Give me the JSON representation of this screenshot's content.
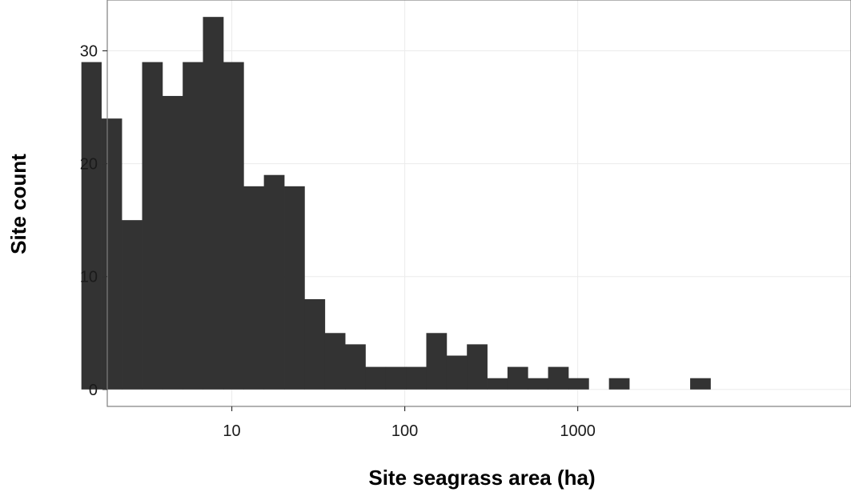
{
  "chart_data": {
    "type": "bar",
    "subtype": "histogram",
    "xlabel": "Site seagrass area (ha)",
    "ylabel": "Site count",
    "x_scale": "log10",
    "x_ticks": [
      10,
      100,
      1000
    ],
    "x_tick_labels": [
      "10",
      "100",
      "1000"
    ],
    "y_ticks": [
      0,
      10,
      20,
      30
    ],
    "y_tick_labels": [
      "0",
      "10",
      "20",
      "30"
    ],
    "ylim": [
      -1.5,
      34.5
    ],
    "xlim_log10": [
      0.28,
      4.58
    ],
    "grid": true,
    "bin_width_log10": 0.117,
    "bins": [
      {
        "from": 1.35,
        "to": 1.76,
        "count": 29
      },
      {
        "from": 1.76,
        "to": 2.31,
        "count": 24
      },
      {
        "from": 2.31,
        "to": 3.03,
        "count": 15
      },
      {
        "from": 3.03,
        "to": 3.97,
        "count": 29
      },
      {
        "from": 3.97,
        "to": 5.2,
        "count": 26
      },
      {
        "from": 5.2,
        "to": 6.81,
        "count": 29
      },
      {
        "from": 6.81,
        "to": 8.93,
        "count": 33
      },
      {
        "from": 8.93,
        "to": 11.7,
        "count": 29
      },
      {
        "from": 11.7,
        "to": 15.33,
        "count": 18
      },
      {
        "from": 15.33,
        "to": 20.09,
        "count": 19
      },
      {
        "from": 20.09,
        "to": 26.32,
        "count": 18
      },
      {
        "from": 26.32,
        "to": 34.49,
        "count": 8
      },
      {
        "from": 34.49,
        "to": 45.19,
        "count": 5
      },
      {
        "from": 45.19,
        "to": 59.21,
        "count": 4
      },
      {
        "from": 59.21,
        "to": 77.58,
        "count": 2
      },
      {
        "from": 77.58,
        "to": 101.65,
        "count": 2
      },
      {
        "from": 101.65,
        "to": 133.18,
        "count": 2
      },
      {
        "from": 133.18,
        "to": 174.5,
        "count": 5
      },
      {
        "from": 174.5,
        "to": 228.64,
        "count": 3
      },
      {
        "from": 228.64,
        "to": 299.57,
        "count": 4
      },
      {
        "from": 299.57,
        "to": 392.51,
        "count": 1
      },
      {
        "from": 392.51,
        "to": 514.29,
        "count": 2
      },
      {
        "from": 514.29,
        "to": 673.84,
        "count": 1
      },
      {
        "from": 673.84,
        "to": 882.9,
        "count": 2
      },
      {
        "from": 882.9,
        "to": 1156.81,
        "count": 1
      },
      {
        "from": 1156.81,
        "to": 1515.7,
        "count": 0
      },
      {
        "from": 1515.7,
        "to": 1985.94,
        "count": 1
      },
      {
        "from": 1985.94,
        "to": 2602.07,
        "count": 0
      },
      {
        "from": 2602.07,
        "to": 3409.36,
        "count": 0
      },
      {
        "from": 3409.36,
        "to": 4467.1,
        "count": 0
      },
      {
        "from": 4467.1,
        "to": 5853.0,
        "count": 1
      }
    ],
    "colors": {
      "bar": "#333333",
      "panel_background": "#ffffff",
      "grid": "#ebebeb",
      "panel_border": "#7f7f7f"
    }
  }
}
